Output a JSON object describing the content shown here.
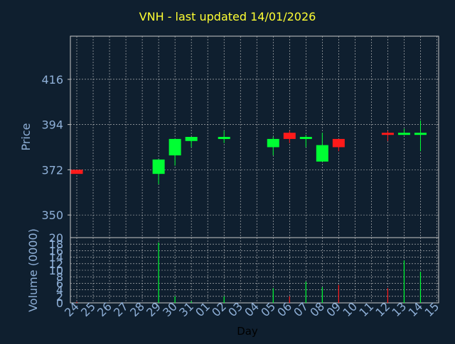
{
  "chart_data": [
    {
      "type": "candlestick",
      "title": "VNH - last updated 14/01/2026",
      "ylabel": "Price",
      "yticks": [
        350,
        372,
        394,
        416
      ],
      "ylim": [
        339,
        437
      ],
      "grid": true,
      "colors": {
        "up": "#00ff33",
        "down": "#ff1a1a",
        "background": "#0f1f2f",
        "grid": "#c8c8c8",
        "text": "#8fb0d8",
        "title": "#ffff33"
      },
      "candles": [
        {
          "date": "24",
          "open": 372,
          "close": 370,
          "high": 372,
          "low": 370
        },
        {
          "date": "29",
          "open": 370,
          "close": 377,
          "high": 377,
          "low": 365
        },
        {
          "date": "30",
          "open": 379,
          "close": 387,
          "high": 387,
          "low": 374
        },
        {
          "date": "31",
          "open": 386,
          "close": 388,
          "high": 388,
          "low": 383
        },
        {
          "date": "02",
          "open": 387,
          "close": 388,
          "high": 391,
          "low": 385
        },
        {
          "date": "05",
          "open": 383,
          "close": 387,
          "high": 388,
          "low": 379
        },
        {
          "date": "06",
          "open": 390,
          "close": 387,
          "high": 391,
          "low": 385
        },
        {
          "date": "07",
          "open": 387,
          "close": 388,
          "high": 389,
          "low": 383
        },
        {
          "date": "08",
          "open": 376,
          "close": 384,
          "high": 390,
          "low": 376
        },
        {
          "date": "09",
          "open": 387,
          "close": 383,
          "high": 387,
          "low": 381
        },
        {
          "date": "12",
          "open": 390,
          "close": 389,
          "high": 391,
          "low": 386
        },
        {
          "date": "13",
          "open": 389,
          "close": 390,
          "high": 392,
          "low": 389
        },
        {
          "date": "14",
          "open": 389,
          "close": 390,
          "high": 396,
          "low": 381
        }
      ]
    },
    {
      "type": "bar",
      "xlabel": "Day",
      "ylabel": "Volume (0000)",
      "yticks": [
        0,
        2,
        4,
        6,
        8,
        10,
        12,
        14,
        16,
        18,
        20
      ],
      "ylim": [
        0,
        20
      ],
      "categories": [
        "24",
        "25",
        "26",
        "27",
        "28",
        "29",
        "30",
        "31",
        "01",
        "02",
        "03",
        "04",
        "05",
        "06",
        "07",
        "08",
        "09",
        "10",
        "11",
        "12",
        "13",
        "14",
        "15"
      ],
      "bars": [
        {
          "date": "24",
          "value": 0.3,
          "direction": "down"
        },
        {
          "date": "29",
          "value": 18.5,
          "direction": "up"
        },
        {
          "date": "30",
          "value": 2.0,
          "direction": "up"
        },
        {
          "date": "31",
          "value": 0.5,
          "direction": "up"
        },
        {
          "date": "02",
          "value": 2.0,
          "direction": "up"
        },
        {
          "date": "05",
          "value": 4.5,
          "direction": "up"
        },
        {
          "date": "06",
          "value": 2.0,
          "direction": "down"
        },
        {
          "date": "07",
          "value": 6.5,
          "direction": "up"
        },
        {
          "date": "08",
          "value": 4.8,
          "direction": "up"
        },
        {
          "date": "09",
          "value": 5.5,
          "direction": "down"
        },
        {
          "date": "12",
          "value": 4.5,
          "direction": "down"
        },
        {
          "date": "13",
          "value": 13.0,
          "direction": "up"
        },
        {
          "date": "14",
          "value": 9.5,
          "direction": "up"
        }
      ]
    }
  ]
}
